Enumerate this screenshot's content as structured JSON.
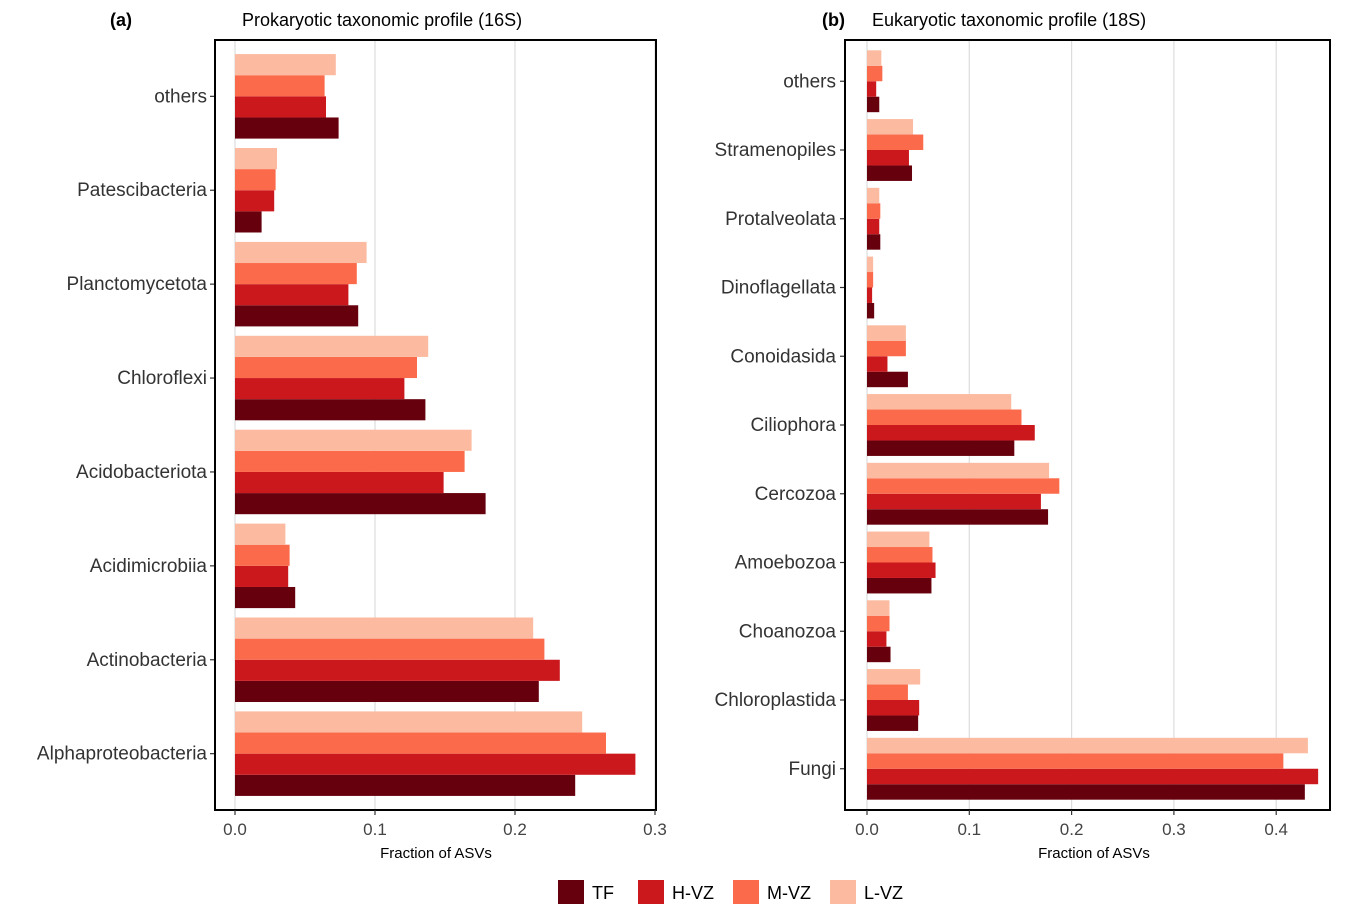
{
  "legend": [
    {
      "label": "TF",
      "color": "#67000d"
    },
    {
      "label": "H-VZ",
      "color": "#cb181d"
    },
    {
      "label": "M-VZ",
      "color": "#fb6a4a"
    },
    {
      "label": "L-VZ",
      "color": "#fcbba1"
    }
  ],
  "chart_data": [
    {
      "type": "bar",
      "orientation": "horizontal",
      "panel_label": "(a)",
      "title": "Prokaryotic taxonomic profile (16S)",
      "xlabel": "Fraction of ASVs",
      "xlim": [
        0,
        0.3
      ],
      "xticks": [
        "0.0",
        "0.1",
        "0.2",
        "0.3"
      ],
      "grid": true,
      "categories": [
        "others",
        "Patescibacteria",
        "Planctomycetota",
        "Chloroflexi",
        "Acidobacteriota",
        "Acidimicrobiia",
        "Actinobacteria",
        "Alphaproteobacteria"
      ],
      "series": [
        {
          "name": "TF",
          "values": [
            0.074,
            0.019,
            0.088,
            0.136,
            0.179,
            0.043,
            0.217,
            0.243
          ]
        },
        {
          "name": "H-VZ",
          "values": [
            0.065,
            0.028,
            0.081,
            0.121,
            0.149,
            0.038,
            0.232,
            0.286
          ]
        },
        {
          "name": "M-VZ",
          "values": [
            0.064,
            0.029,
            0.087,
            0.13,
            0.164,
            0.039,
            0.221,
            0.265
          ]
        },
        {
          "name": "L-VZ",
          "values": [
            0.072,
            0.03,
            0.094,
            0.138,
            0.169,
            0.036,
            0.213,
            0.248
          ]
        }
      ]
    },
    {
      "type": "bar",
      "orientation": "horizontal",
      "panel_label": "(b)",
      "title": "Eukaryotic taxonomic profile (18S)",
      "xlabel": "Fraction of ASVs",
      "xlim": [
        0,
        0.45
      ],
      "xticks": [
        "0.0",
        "0.1",
        "0.2",
        "0.3",
        "0.4"
      ],
      "grid": true,
      "categories": [
        "others",
        "Stramenopiles",
        "Protalveolata",
        "Dinoflagellata",
        "Conoidasida",
        "Ciliophora",
        "Cercozoa",
        "Amoebozoa",
        "Choanozoa",
        "Chloroplastida",
        "Fungi"
      ],
      "series": [
        {
          "name": "TF",
          "values": [
            0.012,
            0.044,
            0.013,
            0.007,
            0.04,
            0.144,
            0.177,
            0.063,
            0.023,
            0.05,
            0.428
          ]
        },
        {
          "name": "H-VZ",
          "values": [
            0.009,
            0.041,
            0.012,
            0.005,
            0.02,
            0.164,
            0.17,
            0.067,
            0.019,
            0.051,
            0.441
          ]
        },
        {
          "name": "M-VZ",
          "values": [
            0.015,
            0.055,
            0.013,
            0.006,
            0.038,
            0.151,
            0.188,
            0.064,
            0.022,
            0.04,
            0.407
          ]
        },
        {
          "name": "L-VZ",
          "values": [
            0.014,
            0.045,
            0.012,
            0.006,
            0.038,
            0.141,
            0.178,
            0.061,
            0.022,
            0.052,
            0.431
          ]
        }
      ]
    }
  ]
}
